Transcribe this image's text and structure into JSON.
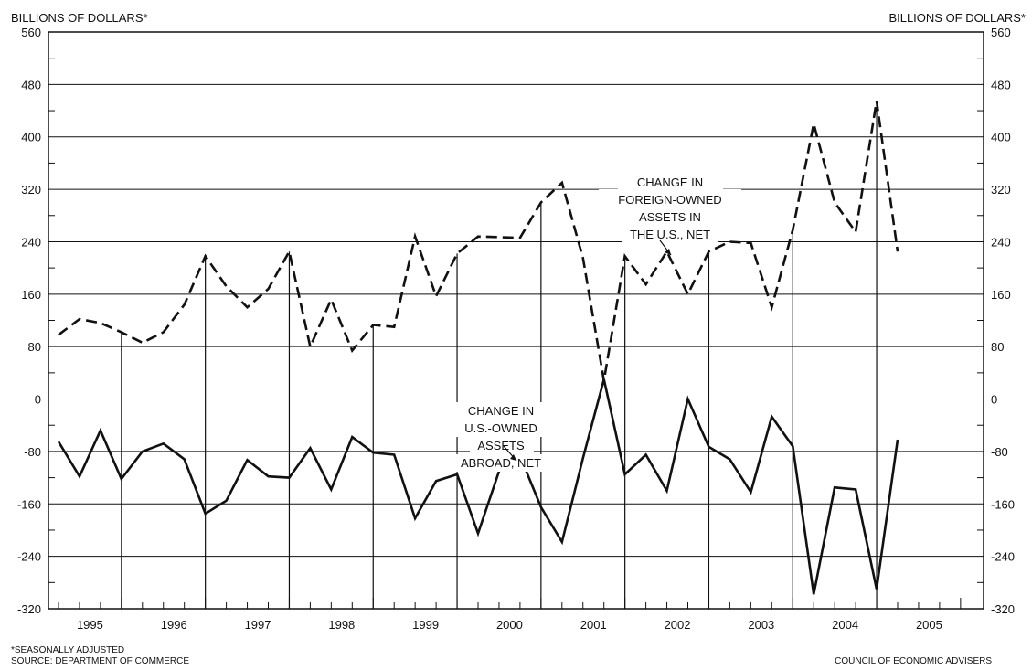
{
  "chart_data": {
    "type": "line",
    "ylabel_left": "BILLIONS OF DOLLARS*",
    "ylabel_right": "BILLIONS OF DOLLARS*",
    "ylim": [
      -320,
      560
    ],
    "y_ticks": [
      560,
      480,
      400,
      320,
      240,
      160,
      80,
      0,
      -80,
      -160,
      -240,
      -320
    ],
    "x_categories": [
      "1995",
      "1996",
      "1997",
      "1998",
      "1999",
      "2000",
      "2001",
      "2002",
      "2003",
      "2004",
      "2005"
    ],
    "x_unit": "quarter",
    "grid": true,
    "series": [
      {
        "id": "foreign",
        "style": "dashed",
        "name": "CHANGE IN FOREIGN-OWNED ASSETS IN THE U.S., NET",
        "annotation_lines": [
          "CHANGE IN",
          "FOREIGN-OWNED",
          "ASSETS IN",
          "THE U.S., NET"
        ],
        "x": [
          "1995 Q1",
          "1995 Q2",
          "1995 Q3",
          "1995 Q4",
          "1996 Q1",
          "1996 Q2",
          "1996 Q3",
          "1996 Q4",
          "1997 Q1",
          "1997 Q2",
          "1997 Q3",
          "1997 Q4",
          "1998 Q1",
          "1998 Q2",
          "1998 Q3",
          "1998 Q4",
          "1999 Q1",
          "1999 Q2",
          "1999 Q3",
          "1999 Q4",
          "2000 Q1",
          "2000 Q2",
          "2000 Q3",
          "2000 Q4",
          "2001 Q1",
          "2001 Q2",
          "2001 Q3",
          "2001 Q4",
          "2002 Q1",
          "2002 Q2",
          "2002 Q3",
          "2002 Q4",
          "2003 Q1",
          "2003 Q2",
          "2003 Q3",
          "2003 Q4",
          "2004 Q1",
          "2004 Q2",
          "2004 Q3",
          "2004 Q4",
          "2005 Q1"
        ],
        "values": [
          98,
          122,
          116,
          102,
          86,
          102,
          144,
          218,
          172,
          140,
          168,
          225,
          80,
          152,
          74,
          113,
          110,
          248,
          157,
          222,
          248,
          247,
          246,
          300,
          330,
          215,
          28,
          218,
          175,
          225,
          160,
          225,
          240,
          238,
          140,
          258,
          420,
          300,
          255,
          455,
          225
        ]
      },
      {
        "id": "us",
        "style": "solid",
        "name": "CHANGE IN U.S.-OWNED ASSETS ABROAD, NET",
        "annotation_lines": [
          "CHANGE IN",
          "U.S.-OWNED",
          "ASSETS",
          "ABROAD, NET"
        ],
        "x": [
          "1995 Q1",
          "1995 Q2",
          "1995 Q3",
          "1995 Q4",
          "1996 Q1",
          "1996 Q2",
          "1996 Q3",
          "1996 Q4",
          "1997 Q1",
          "1997 Q2",
          "1997 Q3",
          "1997 Q4",
          "1998 Q1",
          "1998 Q2",
          "1998 Q3",
          "1998 Q4",
          "1999 Q1",
          "1999 Q2",
          "1999 Q3",
          "1999 Q4",
          "2000 Q1",
          "2000 Q2",
          "2000 Q3",
          "2000 Q4",
          "2001 Q1",
          "2001 Q2",
          "2001 Q3",
          "2001 Q4",
          "2002 Q1",
          "2002 Q2",
          "2002 Q3",
          "2002 Q4",
          "2003 Q1",
          "2003 Q2",
          "2003 Q3",
          "2003 Q4",
          "2004 Q1",
          "2004 Q2",
          "2004 Q3",
          "2004 Q4",
          "2005 Q1"
        ],
        "values": [
          -65,
          -118,
          -48,
          -122,
          -80,
          -68,
          -92,
          -175,
          -155,
          -93,
          -118,
          -120,
          -75,
          -138,
          -58,
          -82,
          -85,
          -182,
          -125,
          -115,
          -205,
          -110,
          -87,
          -165,
          -218,
          -90,
          30,
          -115,
          -85,
          -140,
          0,
          -73,
          -92,
          -142,
          -27,
          -72,
          -298,
          -135,
          -138,
          -290,
          -62
        ]
      }
    ]
  },
  "footnotes": {
    "seasonal": "*SEASONALLY ADJUSTED",
    "source": "SOURCE: DEPARTMENT OF COMMERCE",
    "credit": "COUNCIL OF ECONOMIC ADVISERS"
  }
}
